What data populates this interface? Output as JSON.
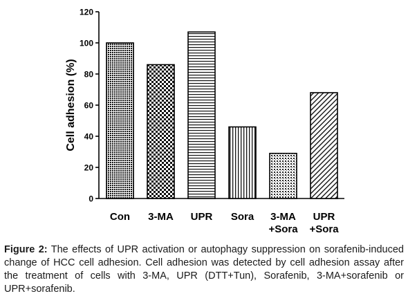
{
  "chart_data": {
    "type": "bar",
    "ylabel": "Cell adhesion (%)",
    "ylim": [
      0,
      120
    ],
    "yticks": [
      0,
      20,
      40,
      60,
      80,
      100,
      120
    ],
    "categories": [
      [
        "Con"
      ],
      [
        "3-MA"
      ],
      [
        "UPR"
      ],
      [
        "Sora"
      ],
      [
        "3-MA",
        "+Sora"
      ],
      [
        "UPR",
        "+Sora"
      ]
    ],
    "values": [
      100,
      86,
      107,
      46,
      29,
      68
    ],
    "patterns": [
      "dense-dots",
      "checker",
      "horizontal-lines",
      "vertical-lines",
      "fine-grid",
      "diagonal-lines"
    ]
  },
  "caption": {
    "label": "Figure 2:",
    "text": "The effects of UPR activation or autophagy suppression on sorafenib-induced change of HCC cell adhesion. Cell adhesion was detected by cell adhesion assay after the treatment of cells with 3-MA, UPR (DTT+Tun), Sorafenib, 3-MA+sorafenib or UPR+sorafenib."
  }
}
